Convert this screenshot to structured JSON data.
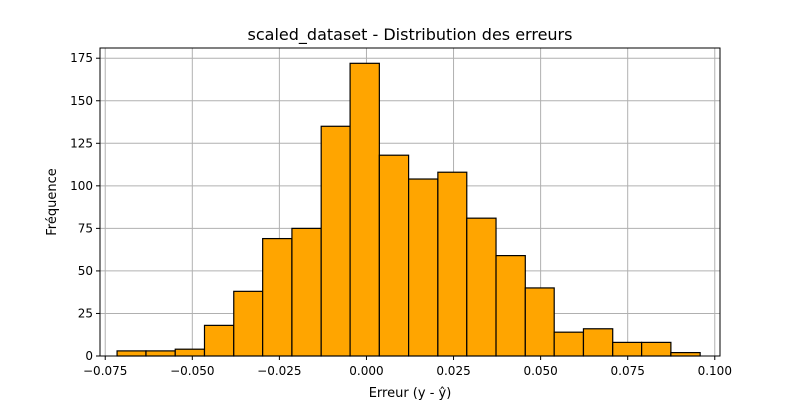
{
  "chart_data": {
    "type": "histogram",
    "title": "scaled_dataset - Distribution des erreurs",
    "xlabel": "Erreur (y - ŷ)",
    "ylabel": "Fréquence",
    "xlim": [
      -0.0765,
      0.1015
    ],
    "ylim": [
      0,
      181
    ],
    "grid": true,
    "bar_color": "#FFA500",
    "edge_color": "#000000",
    "grid_color": "#b0b0b0",
    "x_ticks": [
      -0.075,
      -0.05,
      -0.025,
      0.0,
      0.025,
      0.05,
      0.075,
      0.1
    ],
    "x_tick_labels": [
      "−0.075",
      "−0.050",
      "−0.025",
      "0.000",
      "0.025",
      "0.050",
      "0.075",
      "0.100"
    ],
    "y_ticks": [
      0,
      25,
      50,
      75,
      100,
      125,
      150,
      175
    ],
    "y_tick_labels": [
      "0",
      "25",
      "50",
      "75",
      "100",
      "125",
      "150",
      "175"
    ],
    "bin_edges": [
      -0.0716,
      -0.0633,
      -0.0549,
      -0.0465,
      -0.0381,
      -0.0298,
      -0.0214,
      -0.013,
      -0.0047,
      0.0037,
      0.0121,
      0.0205,
      0.0288,
      0.0372,
      0.0456,
      0.0539,
      0.0623,
      0.0707,
      0.079,
      0.0874,
      0.0958
    ],
    "counts": [
      3,
      3,
      4,
      18,
      38,
      69,
      75,
      135,
      172,
      118,
      104,
      108,
      81,
      59,
      40,
      14,
      16,
      8,
      8,
      2
    ]
  }
}
